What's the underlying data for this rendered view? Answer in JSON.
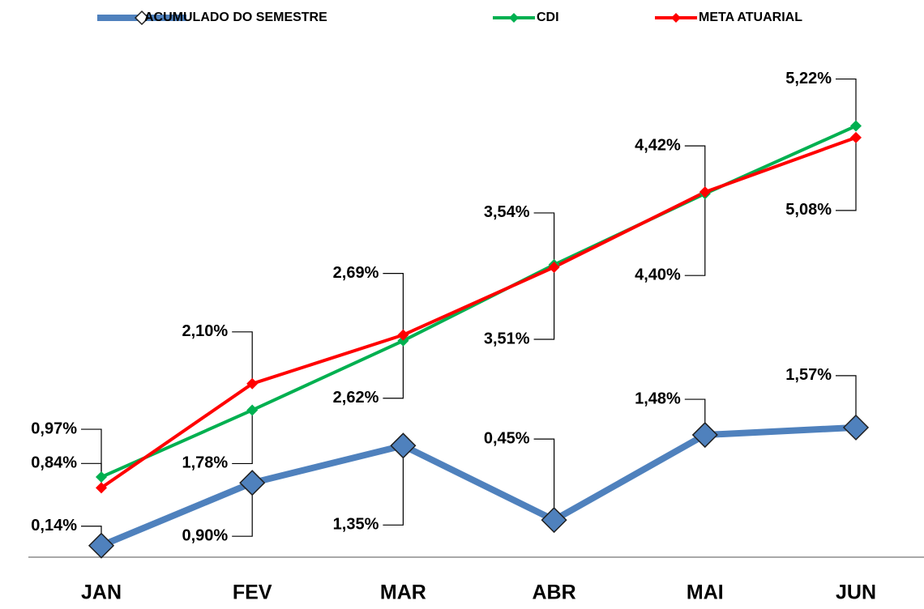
{
  "chart_data": {
    "type": "line",
    "categories": [
      "JAN",
      "FEV",
      "MAR",
      "ABR",
      "MAI",
      "JUN"
    ],
    "series": [
      {
        "name": "ACUMULADO DO SEMESTRE",
        "color": "#4f81bd",
        "values": [
          0.14,
          0.9,
          1.35,
          0.45,
          1.48,
          1.57
        ],
        "value_labels": [
          "0,14%",
          "0,90%",
          "1,35%",
          "0,45%",
          "1,48%",
          "1,57%"
        ]
      },
      {
        "name": "CDI",
        "color": "#00b050",
        "values": [
          0.97,
          1.78,
          2.62,
          3.54,
          4.4,
          5.22
        ],
        "value_labels": [
          "0,97%",
          "1,78%",
          "2,62%",
          "3,54%",
          "4,40%",
          "5,22%"
        ]
      },
      {
        "name": "META ATUARIAL",
        "color": "#ff0000",
        "values": [
          0.84,
          2.1,
          2.69,
          3.51,
          4.42,
          5.08
        ],
        "value_labels": [
          "0,84%",
          "2,10%",
          "2,69%",
          "3,51%",
          "4,42%",
          "5,08%"
        ]
      }
    ],
    "ylim": [
      0,
      6.5
    ]
  }
}
